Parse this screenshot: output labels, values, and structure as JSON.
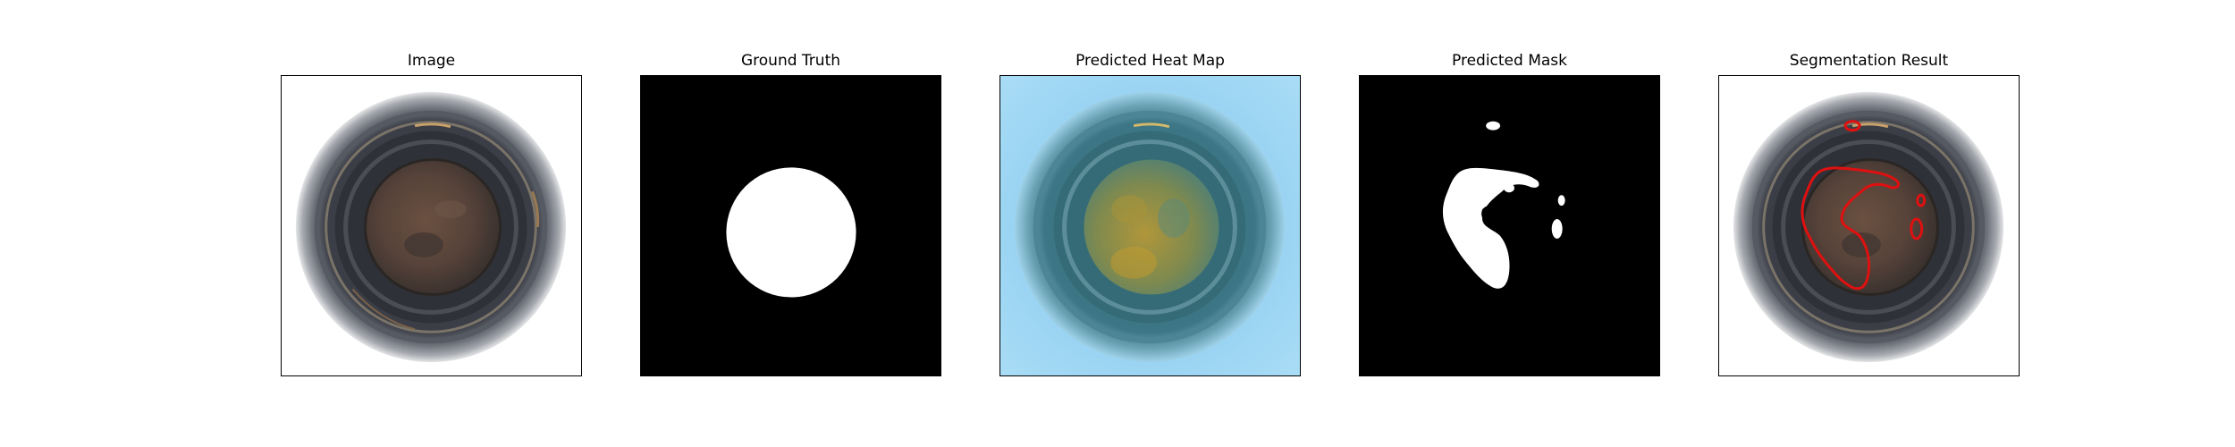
{
  "panels": [
    {
      "id": "image",
      "title": "Image"
    },
    {
      "id": "ground_truth",
      "title": "Ground Truth"
    },
    {
      "id": "heatmap",
      "title": "Predicted Heat Map"
    },
    {
      "id": "mask",
      "title": "Predicted Mask"
    },
    {
      "id": "segmentation",
      "title": "Segmentation Result"
    }
  ],
  "colors": {
    "background": "#ffffff",
    "frame_border": "#000000",
    "mask_foreground": "#ffffff",
    "mask_background": "#000000",
    "heatmap_low": "#8fd0f2",
    "heatmap_high": "#b8a23a",
    "contour": "#e01010"
  }
}
